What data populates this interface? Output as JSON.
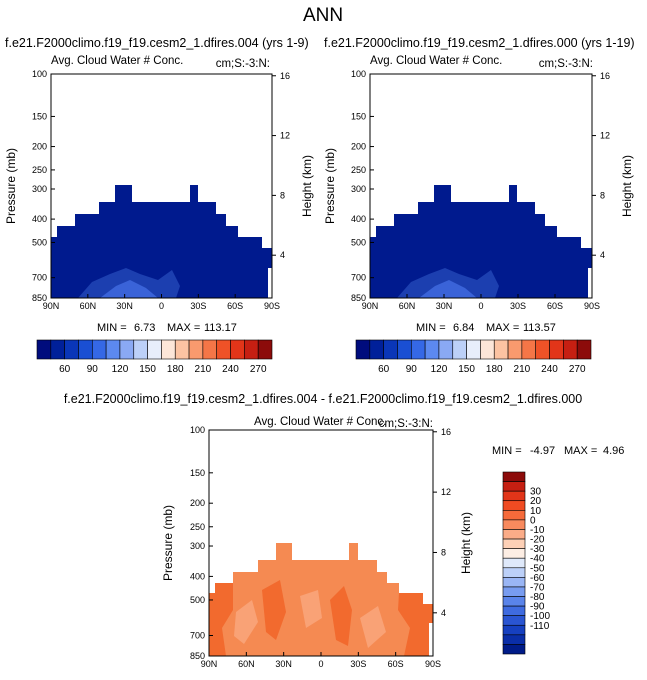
{
  "page": {
    "title": "ANN"
  },
  "chart_data": [
    {
      "type": "heatmap",
      "title": "f.e21.F2000climo.f19_f19.cesm2_1.dfires.004 (yrs 1-9)",
      "subtitle_left": "Avg. Cloud Water # Conc.",
      "subtitle_right": "cm;S:-3:N:",
      "ylabel": "Pressure (mb)",
      "ylabel_right": "Height (km)",
      "x_ticks": [
        "90N",
        "60N",
        "30N",
        "0",
        "30S",
        "60S",
        "90S"
      ],
      "y_ticks": [
        "100",
        "150",
        "200",
        "250",
        "300",
        "400",
        "500",
        "700",
        "850"
      ],
      "y_ticks_right": [
        "16",
        "12",
        "8",
        "4"
      ],
      "stats": {
        "min_label": "MIN =",
        "min": "6.73",
        "max_label": "MAX =",
        "max": "113.17"
      },
      "colorbar_labels": [
        "60",
        "90",
        "120",
        "150",
        "180",
        "210",
        "240",
        "270"
      ],
      "colors": [
        "#000c7d",
        "#00209a",
        "#0a36b8",
        "#1a4fd3",
        "#3568e6",
        "#5c89f0",
        "#8aa9f4",
        "#bcd0f8",
        "#e8eefb",
        "#fde6d8",
        "#fcc3a2",
        "#f99a6e",
        "#f57647",
        "#ef5227",
        "#e23519",
        "#c61f12",
        "#8c0b0a"
      ]
    },
    {
      "type": "heatmap",
      "title": "f.e21.F2000climo.f19_f19.cesm2_1.dfires.000 (yrs 1-19)",
      "subtitle_left": "Avg. Cloud Water # Conc.",
      "subtitle_right": "cm;S:-3:N:",
      "ylabel": "Pressure (mb)",
      "ylabel_right": "Height (km)",
      "x_ticks": [
        "90N",
        "60N",
        "30N",
        "0",
        "30S",
        "60S",
        "90S"
      ],
      "y_ticks": [
        "100",
        "150",
        "200",
        "250",
        "300",
        "400",
        "500",
        "700",
        "850"
      ],
      "y_ticks_right": [
        "16",
        "12",
        "8",
        "4"
      ],
      "stats": {
        "min_label": "MIN =",
        "min": "6.84",
        "max_label": "MAX =",
        "max": "113.57"
      },
      "colorbar_labels": [
        "60",
        "90",
        "120",
        "150",
        "180",
        "210",
        "240",
        "270"
      ],
      "colors": [
        "#000c7d",
        "#00209a",
        "#0a36b8",
        "#1a4fd3",
        "#3568e6",
        "#5c89f0",
        "#8aa9f4",
        "#bcd0f8",
        "#e8eefb",
        "#fde6d8",
        "#fcc3a2",
        "#f99a6e",
        "#f57647",
        "#ef5227",
        "#e23519",
        "#c61f12",
        "#8c0b0a"
      ]
    },
    {
      "type": "heatmap",
      "title": "f.e21.F2000climo.f19_f19.cesm2_1.dfires.004 - f.e21.F2000climo.f19_f19.cesm2_1.dfires.000",
      "subtitle_left": "Avg. Cloud Water # Conc.",
      "subtitle_right": "cm;S:-3:N:",
      "ylabel": "Pressure (mb)",
      "ylabel_right": "Height (km)",
      "x_ticks": [
        "90N",
        "60N",
        "30N",
        "0",
        "30S",
        "60S",
        "90S"
      ],
      "y_ticks": [
        "100",
        "150",
        "200",
        "250",
        "300",
        "400",
        "500",
        "700",
        "850"
      ],
      "y_ticks_right": [
        "16",
        "12",
        "8",
        "4"
      ],
      "stats": {
        "min_label": "MIN =",
        "min": "-4.97",
        "max_label": "MAX =",
        "max": "4.96"
      },
      "colorbar_labels": [
        "30",
        "20",
        "10",
        "0",
        "-10",
        "-20",
        "-30",
        "-40",
        "-50",
        "-60",
        "-70",
        "-80",
        "-90",
        "-100",
        "-110"
      ],
      "colors": [
        "#8c0b0a",
        "#c61f12",
        "#e23519",
        "#f04b22",
        "#f56a3a",
        "#f88a5e",
        "#fbac88",
        "#fdd0b6",
        "#fdeee4",
        "#dfe9fa",
        "#bcd0f8",
        "#9ab6f5",
        "#789cf0",
        "#5a84ea",
        "#3f6be0",
        "#2a55d2",
        "#1640c0",
        "#0a2ea8",
        "#001b88"
      ]
    }
  ]
}
